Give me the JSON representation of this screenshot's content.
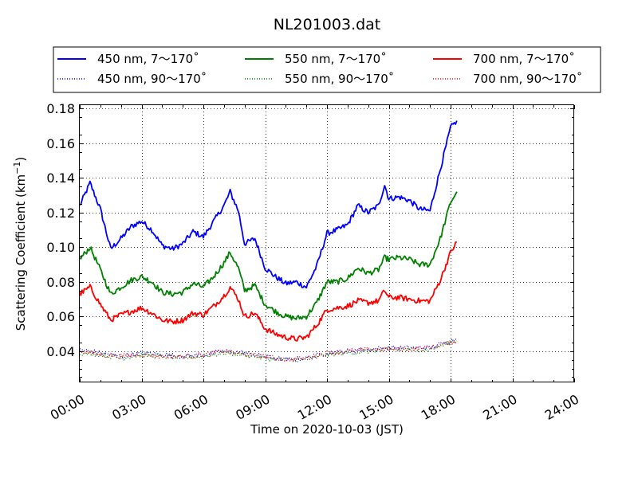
{
  "chart_data": {
    "type": "line",
    "title": "NL201003.dat",
    "xlabel": "Time on 2020-10-03 (JST)",
    "ylabel": "Scattering Coefficient (km",
    "ylabel_sup": "−1",
    "ylabel_close": ")",
    "xlim": [
      0,
      24
    ],
    "ylim": [
      0.022,
      0.182
    ],
    "x_unit": "hours",
    "x_ticks": [
      0,
      3,
      6,
      9,
      12,
      15,
      18,
      21,
      24
    ],
    "x_tick_labels": [
      "00:00",
      "03:00",
      "06:00",
      "09:00",
      "12:00",
      "15:00",
      "18:00",
      "21:00",
      "24:00"
    ],
    "y_ticks": [
      0.04,
      0.06,
      0.08,
      0.1,
      0.12,
      0.14,
      0.16,
      0.18
    ],
    "y_tick_labels": [
      "0.04",
      "0.06",
      "0.08",
      "0.10",
      "0.12",
      "0.14",
      "0.16",
      "0.18"
    ],
    "grid": true,
    "legend_position": "top",
    "series": [
      {
        "name": "450 nm, 7～170˚",
        "color": "#0000ff",
        "style": "solid",
        "x": [
          0.0,
          0.5,
          1.0,
          1.5,
          2.0,
          2.5,
          3.0,
          3.5,
          4.0,
          4.5,
          5.0,
          5.5,
          6.0,
          6.5,
          7.0,
          7.3,
          7.7,
          8.0,
          8.5,
          9.0,
          9.5,
          10.0,
          10.5,
          11.0,
          11.5,
          12.0,
          12.5,
          13.0,
          13.5,
          14.0,
          14.5,
          14.8,
          15.0,
          15.5,
          16.0,
          16.5,
          17.0,
          17.5,
          18.0,
          18.3
        ],
        "y": [
          0.124,
          0.137,
          0.122,
          0.099,
          0.105,
          0.112,
          0.115,
          0.11,
          0.101,
          0.099,
          0.102,
          0.109,
          0.106,
          0.115,
          0.124,
          0.132,
          0.121,
          0.102,
          0.105,
          0.088,
          0.083,
          0.079,
          0.08,
          0.077,
          0.089,
          0.108,
          0.11,
          0.113,
          0.124,
          0.12,
          0.124,
          0.136,
          0.128,
          0.129,
          0.127,
          0.122,
          0.121,
          0.145,
          0.169,
          0.173
        ]
      },
      {
        "name": "550 nm, 7～170˚",
        "color": "#008000",
        "style": "solid",
        "x": [
          0.0,
          0.5,
          1.0,
          1.5,
          2.0,
          2.5,
          3.0,
          3.5,
          4.0,
          4.5,
          5.0,
          5.5,
          6.0,
          6.5,
          7.0,
          7.3,
          7.7,
          8.0,
          8.5,
          9.0,
          9.5,
          10.0,
          10.5,
          11.0,
          11.5,
          12.0,
          12.5,
          13.0,
          13.5,
          14.0,
          14.5,
          14.8,
          15.0,
          15.5,
          16.0,
          16.5,
          17.0,
          17.5,
          18.0,
          18.3
        ],
        "y": [
          0.093,
          0.1,
          0.087,
          0.073,
          0.077,
          0.081,
          0.083,
          0.08,
          0.074,
          0.073,
          0.074,
          0.079,
          0.077,
          0.083,
          0.091,
          0.097,
          0.088,
          0.075,
          0.078,
          0.067,
          0.063,
          0.06,
          0.059,
          0.06,
          0.068,
          0.08,
          0.08,
          0.082,
          0.088,
          0.085,
          0.087,
          0.094,
          0.093,
          0.094,
          0.093,
          0.09,
          0.09,
          0.105,
          0.126,
          0.132
        ]
      },
      {
        "name": "700 nm, 7～170˚",
        "color": "#ff0000",
        "style": "solid",
        "x": [
          0.0,
          0.5,
          1.0,
          1.5,
          2.0,
          2.5,
          3.0,
          3.5,
          4.0,
          4.5,
          5.0,
          5.5,
          6.0,
          6.5,
          7.0,
          7.3,
          7.7,
          8.0,
          8.5,
          9.0,
          9.5,
          10.0,
          10.5,
          11.0,
          11.5,
          12.0,
          12.5,
          13.0,
          13.5,
          14.0,
          14.5,
          14.8,
          15.0,
          15.5,
          16.0,
          16.5,
          17.0,
          17.5,
          18.0,
          18.3
        ],
        "y": [
          0.073,
          0.077,
          0.067,
          0.058,
          0.061,
          0.063,
          0.065,
          0.062,
          0.058,
          0.057,
          0.058,
          0.062,
          0.061,
          0.066,
          0.072,
          0.077,
          0.07,
          0.06,
          0.062,
          0.053,
          0.05,
          0.048,
          0.047,
          0.048,
          0.055,
          0.064,
          0.065,
          0.066,
          0.069,
          0.068,
          0.069,
          0.075,
          0.071,
          0.071,
          0.07,
          0.069,
          0.069,
          0.081,
          0.097,
          0.103
        ]
      },
      {
        "name": "450 nm, 90～170˚",
        "color": "#0000ff",
        "style": "dotted",
        "x": [
          0.0,
          1.0,
          2.0,
          3.0,
          4.0,
          5.0,
          6.0,
          7.0,
          8.0,
          9.0,
          10.0,
          11.0,
          12.0,
          13.0,
          14.0,
          15.0,
          16.0,
          17.0,
          18.0,
          18.3
        ],
        "y": [
          0.041,
          0.039,
          0.037,
          0.039,
          0.038,
          0.037,
          0.038,
          0.04,
          0.039,
          0.037,
          0.035,
          0.036,
          0.039,
          0.04,
          0.041,
          0.042,
          0.042,
          0.042,
          0.046,
          0.047
        ]
      },
      {
        "name": "550 nm, 90～170˚",
        "color": "#008000",
        "style": "dotted",
        "x": [
          0.0,
          1.0,
          2.0,
          3.0,
          4.0,
          5.0,
          6.0,
          7.0,
          8.0,
          9.0,
          10.0,
          11.0,
          12.0,
          13.0,
          14.0,
          15.0,
          16.0,
          17.0,
          18.0,
          18.3
        ],
        "y": [
          0.039,
          0.038,
          0.036,
          0.038,
          0.037,
          0.036,
          0.037,
          0.039,
          0.038,
          0.036,
          0.035,
          0.035,
          0.038,
          0.039,
          0.04,
          0.041,
          0.041,
          0.041,
          0.045,
          0.046
        ]
      },
      {
        "name": "700 nm, 90～170˚",
        "color": "#ff0000",
        "style": "dotted",
        "x": [
          0.0,
          1.0,
          2.0,
          3.0,
          4.0,
          5.0,
          6.0,
          7.0,
          8.0,
          9.0,
          10.0,
          11.0,
          12.0,
          13.0,
          14.0,
          15.0,
          16.0,
          17.0,
          18.0,
          18.3
        ],
        "y": [
          0.04,
          0.038,
          0.037,
          0.038,
          0.037,
          0.037,
          0.038,
          0.04,
          0.038,
          0.037,
          0.035,
          0.036,
          0.039,
          0.04,
          0.041,
          0.041,
          0.041,
          0.042,
          0.045,
          0.046
        ]
      }
    ],
    "legend_order": [
      0,
      1,
      2,
      3,
      4,
      5
    ]
  }
}
